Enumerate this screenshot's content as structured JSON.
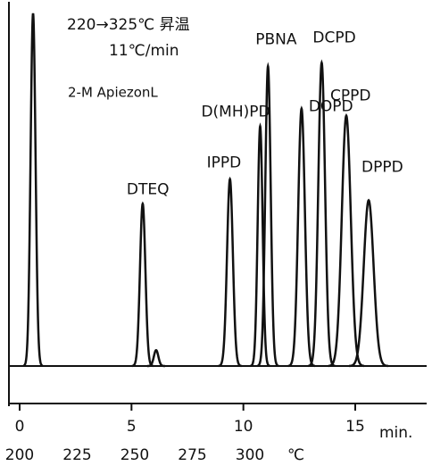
{
  "chart_data": {
    "type": "chromatogram",
    "annotations": [
      "220→325℃ 昇温",
      "11℃/min",
      "2-M ApiezonL"
    ],
    "x_label": "min.",
    "x2_label": "℃",
    "xlim": [
      0,
      15
    ],
    "xticks": [
      0,
      5,
      10,
      15
    ],
    "x2lim": [
      200,
      300
    ],
    "x2ticks": [
      200,
      225,
      250,
      275,
      300
    ],
    "ylim": [
      0,
      100
    ],
    "color": "#111111",
    "peaks": [
      {
        "name": null,
        "x": 0.6,
        "value": 100,
        "width": 0.11
      },
      {
        "name": "DTEQ",
        "x": 5.5,
        "value": 46,
        "width": 0.12
      },
      {
        "name": null,
        "x": 6.1,
        "value": 4.5,
        "width": 0.1
      },
      {
        "name": "IPPD",
        "x": 9.4,
        "value": 53,
        "width": 0.13
      },
      {
        "name": "D(MH)PD",
        "x": 10.75,
        "value": 68,
        "width": 0.11
      },
      {
        "name": "PBNA",
        "x": 11.1,
        "value": 85,
        "width": 0.12
      },
      {
        "name": "DOPD",
        "x": 12.6,
        "value": 73,
        "width": 0.15
      },
      {
        "name": "DCPD",
        "x": 13.5,
        "value": 86,
        "width": 0.15
      },
      {
        "name": "CPPD",
        "x": 14.6,
        "value": 71,
        "width": 0.2
      },
      {
        "name": "DPPD",
        "x": 15.6,
        "value": 47,
        "width": 0.22
      }
    ]
  }
}
